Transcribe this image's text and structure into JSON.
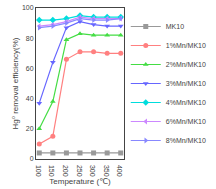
{
  "chart_data": {
    "type": "line",
    "x": [
      100,
      150,
      200,
      250,
      300,
      350,
      400
    ],
    "series": [
      {
        "name": "MK10",
        "color": "#999999",
        "marker": "square",
        "values": [
          4,
          4,
          4,
          4,
          4,
          4,
          4
        ]
      },
      {
        "name": "1%Mn/MK10",
        "color": "#ff8080",
        "marker": "circle",
        "values": [
          10,
          15,
          66,
          71,
          71,
          70,
          70
        ]
      },
      {
        "name": "2%Mn/MK10",
        "color": "#44dd44",
        "marker": "triangle-up",
        "values": [
          20,
          38,
          79,
          83,
          82,
          82,
          82
        ]
      },
      {
        "name": "3%Mn/MK10",
        "color": "#6666ff",
        "marker": "triangle-down",
        "values": [
          37,
          64,
          87,
          91,
          89,
          88,
          88
        ]
      },
      {
        "name": "4%Mn/MK10",
        "color": "#00dddd",
        "marker": "diamond",
        "values": [
          92,
          92,
          93,
          95,
          94,
          94,
          94
        ]
      },
      {
        "name": "6%Mn/MK10",
        "color": "#cc88ff",
        "marker": "triangle-left",
        "values": [
          88,
          89,
          91,
          94,
          93,
          93,
          93
        ]
      },
      {
        "name": "8%Mn/MK10",
        "color": "#8888ff",
        "marker": "triangle-right",
        "values": [
          87,
          88,
          90,
          93,
          92,
          92,
          93
        ]
      }
    ],
    "xlabel": "Temperature (℃)",
    "ylabel": "Hg⁰ removal efficiency(%)",
    "xlim": [
      88,
      412
    ],
    "ylim": [
      0,
      100
    ],
    "xticks": [
      100,
      150,
      200,
      250,
      300,
      350,
      400
    ],
    "yticks": [
      0,
      20,
      40,
      60,
      80,
      100
    ],
    "grid": false,
    "legend": "right"
  }
}
